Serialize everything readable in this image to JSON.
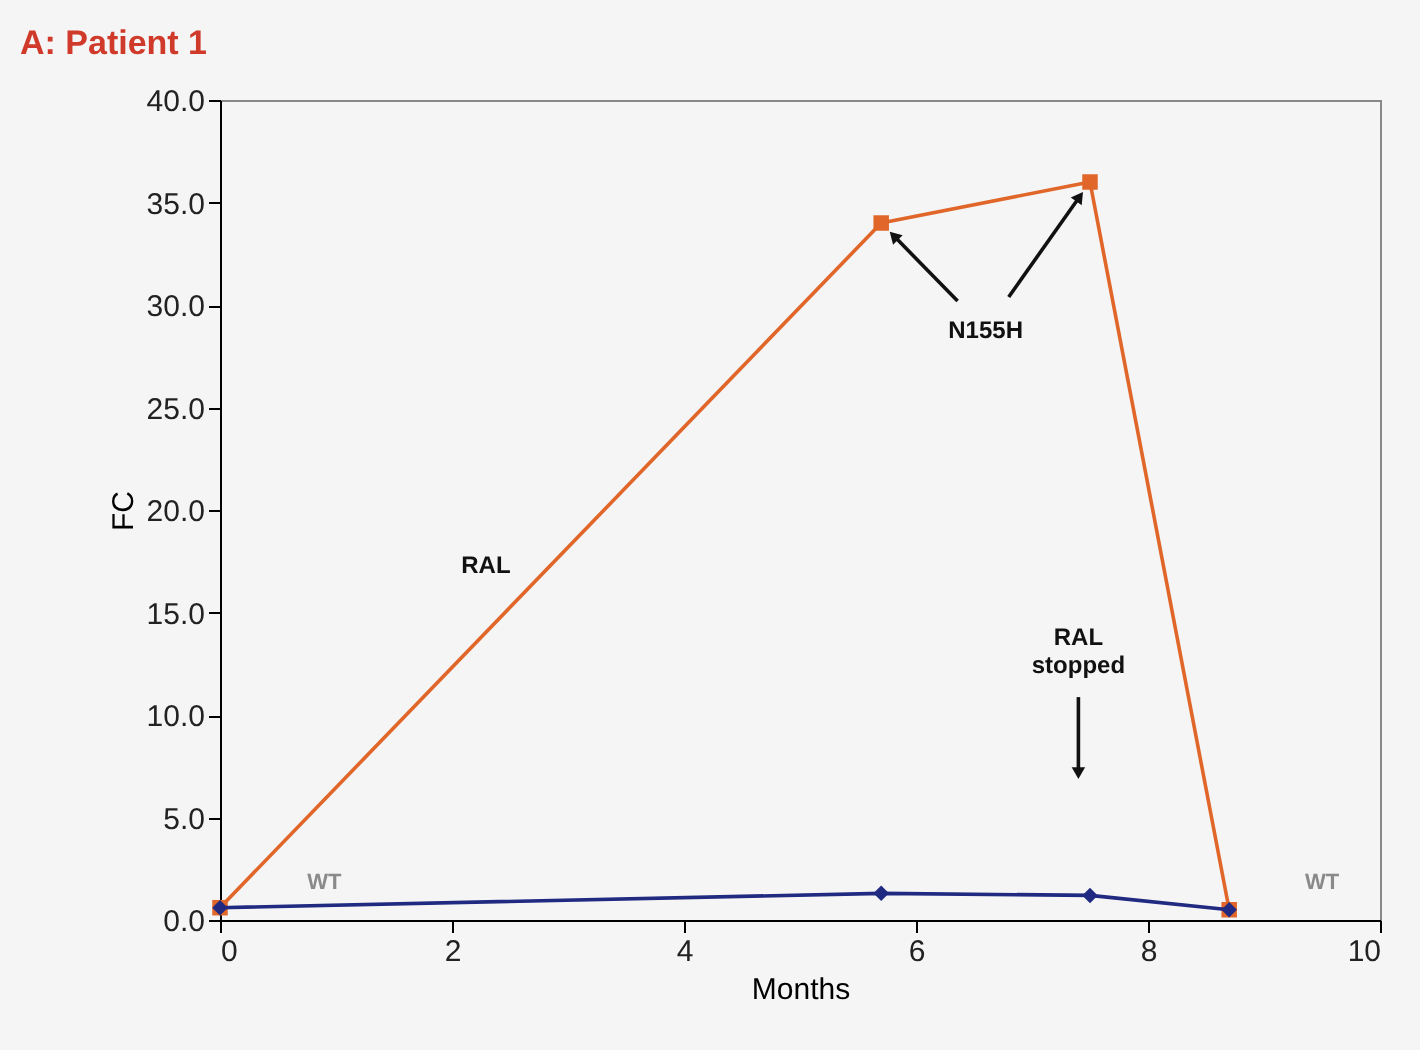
{
  "chart_data": {
    "type": "line",
    "title": "A: Patient 1",
    "xlabel": "Months",
    "ylabel": "FC",
    "xlim": [
      0,
      10
    ],
    "xticks": [
      0,
      2,
      4,
      6,
      8,
      10
    ],
    "ylim": [
      0,
      40
    ],
    "yticks": [
      {
        "value": 0,
        "label": "0.0"
      },
      {
        "value": 5,
        "label": "5.0"
      },
      {
        "value": 10,
        "label": "10.0"
      },
      {
        "value": 15,
        "label": "15.0"
      },
      {
        "value": 20,
        "label": "20.0"
      },
      {
        "value": 25,
        "label": "25.0"
      },
      {
        "value": 30,
        "label": "30.0"
      },
      {
        "value": 35,
        "label": "35.0"
      },
      {
        "value": 40,
        "label": "40.0"
      }
    ],
    "grid": false,
    "line_style": "solid",
    "series": [
      {
        "name": "RAL",
        "color": "#e0662a",
        "marker": "square",
        "x": [
          0,
          5.7,
          7.5,
          8.7
        ],
        "values": [
          0.6,
          34.0,
          36.0,
          0.5
        ]
      },
      {
        "color": "#1f2a80",
        "marker": "diamond",
        "x": [
          0,
          5.7,
          7.5,
          8.7
        ],
        "values": [
          0.6,
          1.3,
          1.2,
          0.5
        ]
      }
    ],
    "annotations": [
      {
        "text": "N155H",
        "x": 5.7,
        "y": 34
      },
      "RAL stopped",
      "WT",
      "WT"
    ]
  }
}
